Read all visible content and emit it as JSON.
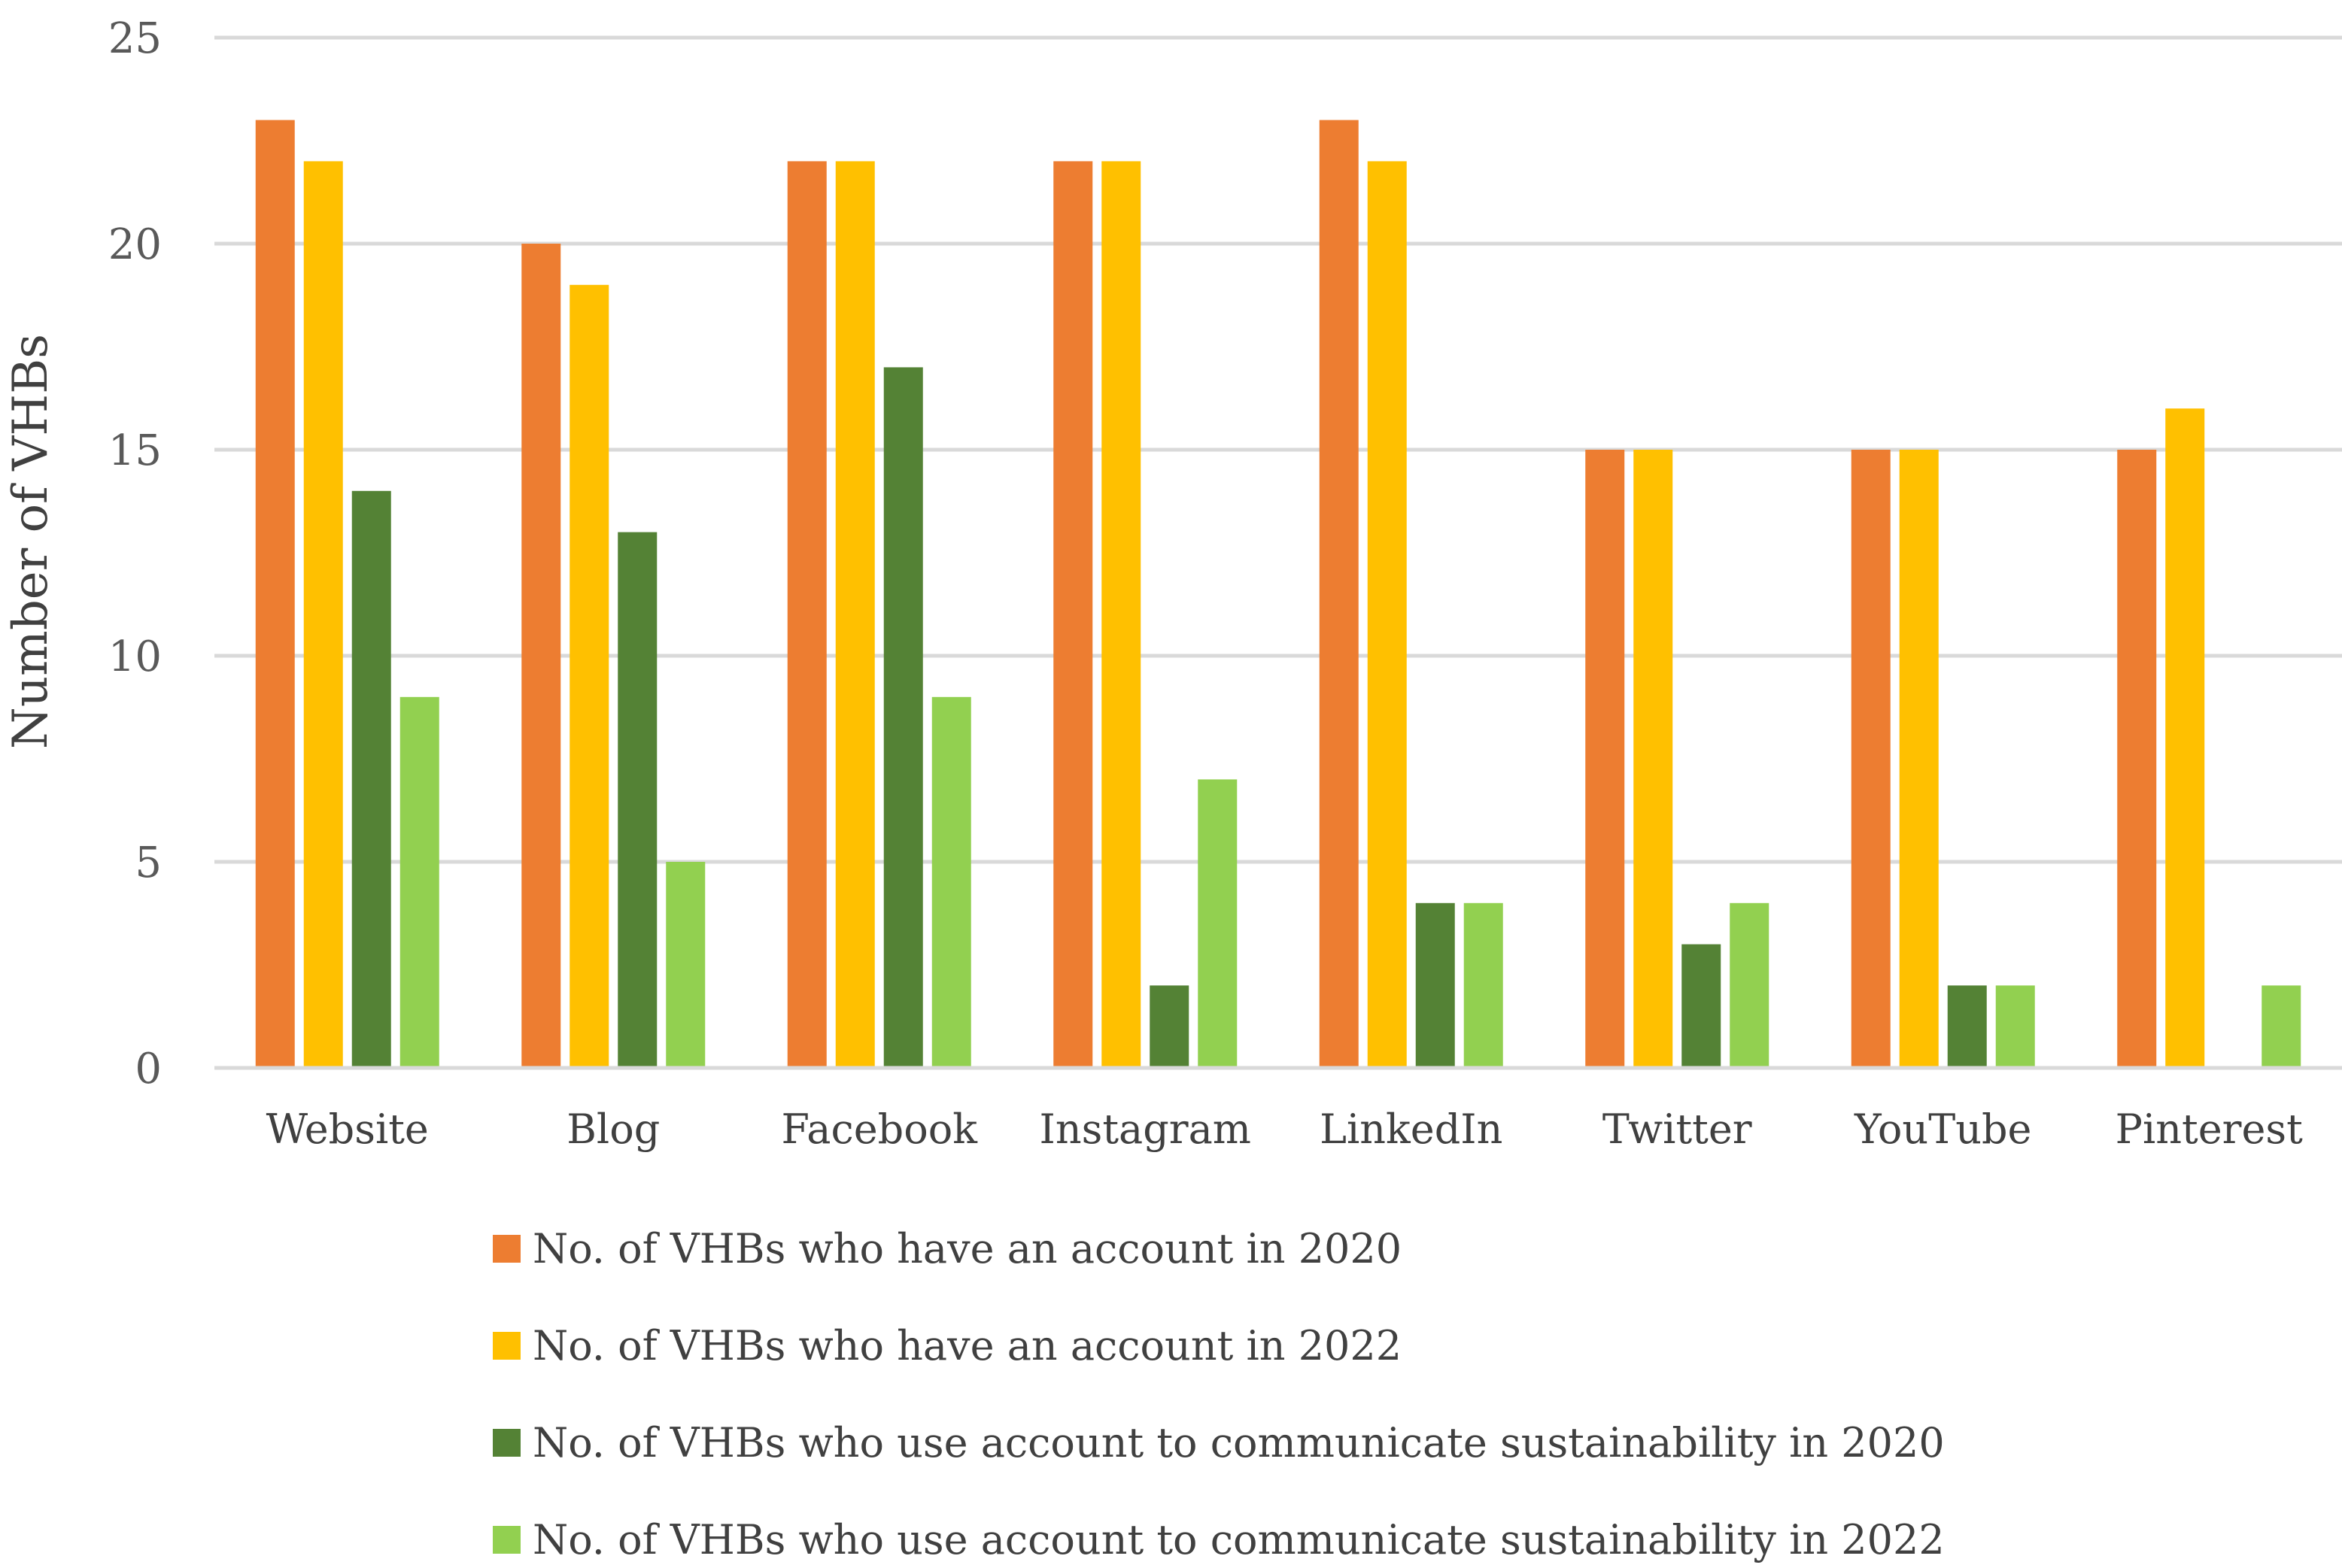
{
  "chart_data": {
    "type": "bar",
    "title": "",
    "xlabel": "",
    "ylabel": "Number of VHBs",
    "ylim": [
      0,
      25
    ],
    "yticks": [
      0,
      5,
      10,
      15,
      20,
      25
    ],
    "grid": true,
    "legend_position": "bottom",
    "categories": [
      "Website",
      "Blog",
      "Facebook",
      "Instagram",
      "LinkedIn",
      "Twitter",
      "YouTube",
      "Pinterest"
    ],
    "series": [
      {
        "name": "No. of VHBs who have an account in 2020",
        "color": "#ED7D31",
        "values": [
          23,
          20,
          22,
          22,
          23,
          15,
          15,
          15
        ]
      },
      {
        "name": "No. of VHBs who have an account in 2022",
        "color": "#FFC000",
        "values": [
          22,
          19,
          22,
          22,
          22,
          15,
          15,
          16
        ]
      },
      {
        "name": "No. of VHBs who use account to communicate sustainability in 2020",
        "color": "#548235",
        "values": [
          14,
          13,
          17,
          2,
          4,
          3,
          2,
          0
        ]
      },
      {
        "name": "No. of VHBs who use account to communicate sustainability in 2022",
        "color": "#92D050",
        "values": [
          9,
          5,
          9,
          7,
          4,
          4,
          2,
          2
        ]
      }
    ]
  }
}
